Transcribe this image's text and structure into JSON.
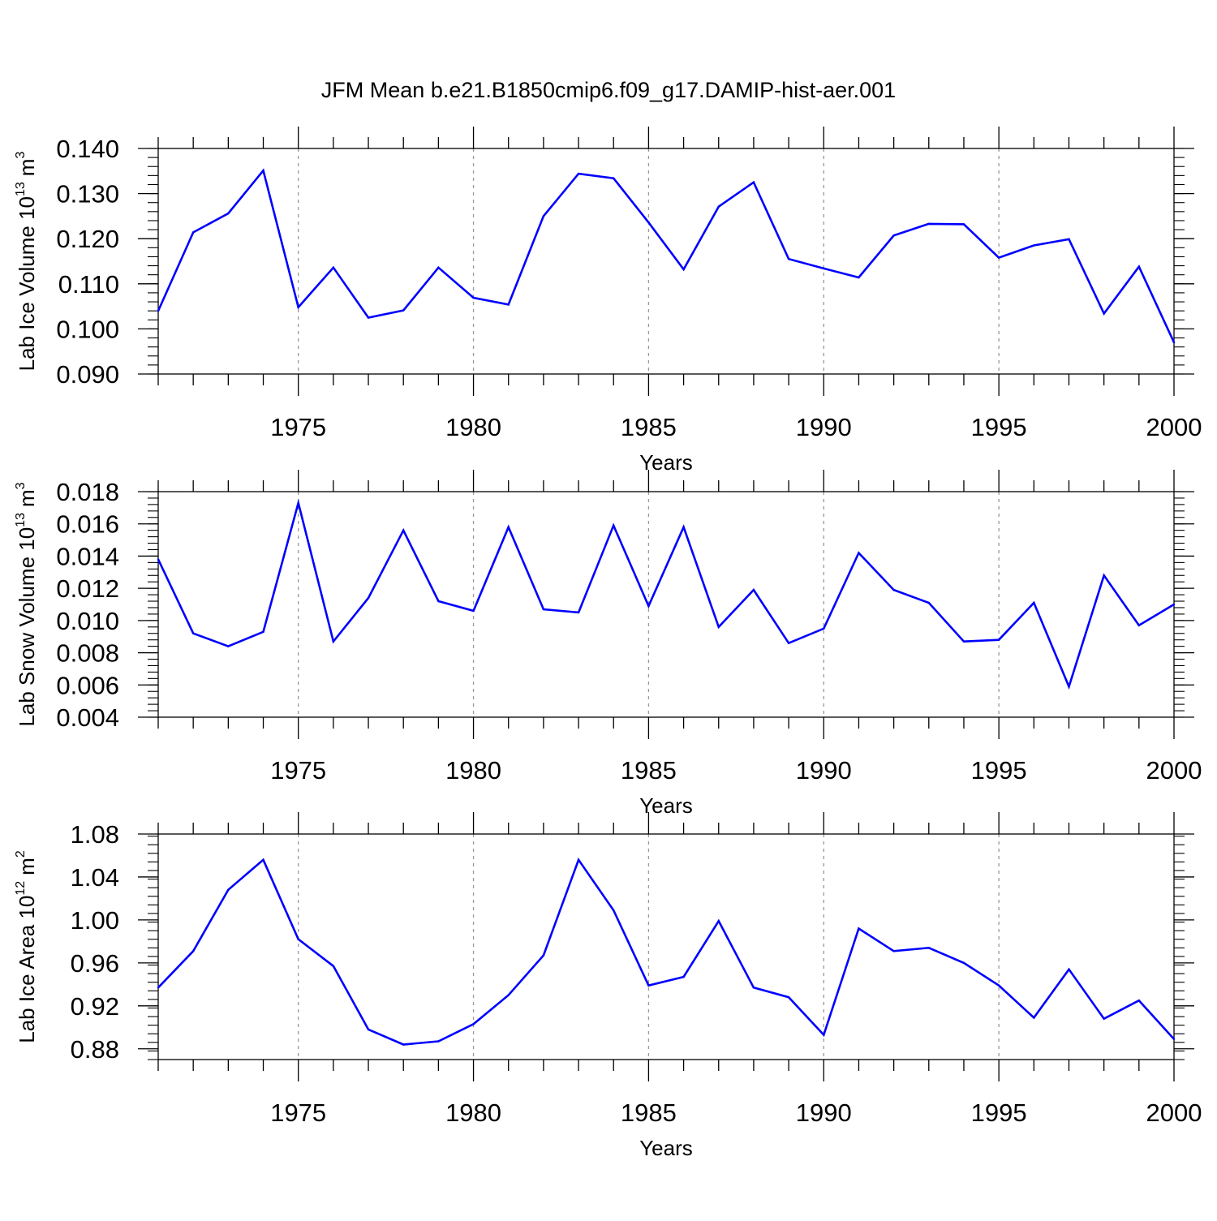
{
  "figure": {
    "title": "JFM Mean b.e21.B1850cmip6.f09_g17.DAMIP-hist-aer.001",
    "line_color": "#0000ff",
    "grid_color": "#999999"
  },
  "chart_data": [
    {
      "type": "line",
      "x": [
        1971,
        1972,
        1973,
        1974,
        1975,
        1976,
        1977,
        1978,
        1979,
        1980,
        1981,
        1982,
        1983,
        1984,
        1985,
        1986,
        1987,
        1988,
        1989,
        1990,
        1991,
        1992,
        1993,
        1994,
        1995,
        1996,
        1997,
        1998,
        1999,
        2000
      ],
      "values": [
        0.104,
        0.1214,
        0.1256,
        0.1351,
        0.1048,
        0.1136,
        0.1025,
        0.1041,
        0.1136,
        0.1069,
        0.1054,
        0.125,
        0.1344,
        0.1334,
        0.1236,
        0.1132,
        0.1271,
        0.1325,
        0.1155,
        0.1134,
        0.1114,
        0.1207,
        0.1233,
        0.1232,
        0.1158,
        0.1185,
        0.1199,
        0.1034,
        0.1138,
        0.097
      ],
      "ylabel": "Lab Ice Volume 10",
      "ylabel_sup": "13",
      "ylabel_unit": "m",
      "ylabel_unit_sup": "3",
      "xlabel": "Years",
      "ylim": [
        0.09,
        0.14
      ],
      "xlim": [
        1971,
        2000
      ],
      "yticks": [
        0.09,
        0.1,
        0.11,
        0.12,
        0.13,
        0.14
      ],
      "ytick_labels": [
        "0.090",
        "0.100",
        "0.110",
        "0.120",
        "0.130",
        "0.140"
      ],
      "xticks": [
        1975,
        1980,
        1985,
        1990,
        1995,
        2000
      ],
      "xtick_labels": [
        "1975",
        "1980",
        "1985",
        "1990",
        "1995",
        "2000"
      ],
      "minor_y": 0.002,
      "grid": "vertical dashed at major x ticks"
    },
    {
      "type": "line",
      "x": [
        1971,
        1972,
        1973,
        1974,
        1975,
        1976,
        1977,
        1978,
        1979,
        1980,
        1981,
        1982,
        1983,
        1984,
        1985,
        1986,
        1987,
        1988,
        1989,
        1990,
        1991,
        1992,
        1993,
        1994,
        1995,
        1996,
        1997,
        1998,
        1999,
        2000
      ],
      "values": [
        0.0138,
        0.0092,
        0.0084,
        0.0093,
        0.0173,
        0.0087,
        0.0114,
        0.0156,
        0.0112,
        0.0106,
        0.0158,
        0.0107,
        0.0105,
        0.0159,
        0.0109,
        0.0158,
        0.0096,
        0.0119,
        0.0086,
        0.0095,
        0.0142,
        0.0119,
        0.0111,
        0.0087,
        0.0088,
        0.0111,
        0.0059,
        0.0128,
        0.0097,
        0.011
      ],
      "ylabel": "Lab Snow Volume 10",
      "ylabel_sup": "13",
      "ylabel_unit": "m",
      "ylabel_unit_sup": "3",
      "xlabel": "Years",
      "ylim": [
        0.004,
        0.018
      ],
      "xlim": [
        1971,
        2000
      ],
      "yticks": [
        0.004,
        0.006,
        0.008,
        0.01,
        0.012,
        0.014,
        0.016,
        0.018
      ],
      "ytick_labels": [
        "0.004",
        "0.006",
        "0.008",
        "0.010",
        "0.012",
        "0.014",
        "0.016",
        "0.018"
      ],
      "xticks": [
        1975,
        1980,
        1985,
        1990,
        1995,
        2000
      ],
      "xtick_labels": [
        "1975",
        "1980",
        "1985",
        "1990",
        "1995",
        "2000"
      ],
      "minor_y": 0.0004,
      "grid": "vertical dashed at major x ticks"
    },
    {
      "type": "line",
      "x": [
        1971,
        1972,
        1973,
        1974,
        1975,
        1976,
        1977,
        1978,
        1979,
        1980,
        1981,
        1982,
        1983,
        1984,
        1985,
        1986,
        1987,
        1988,
        1989,
        1990,
        1991,
        1992,
        1993,
        1994,
        1995,
        1996,
        1997,
        1998,
        1999,
        2000
      ],
      "values": [
        0.937,
        0.971,
        1.028,
        1.056,
        0.982,
        0.957,
        0.898,
        0.884,
        0.887,
        0.903,
        0.93,
        0.967,
        1.056,
        1.009,
        0.939,
        0.947,
        0.999,
        0.937,
        0.928,
        0.893,
        0.992,
        0.971,
        0.974,
        0.96,
        0.939,
        0.909,
        0.954,
        0.908,
        0.925,
        0.889
      ],
      "ylabel": "Lab Ice Area 10",
      "ylabel_sup": "12",
      "ylabel_unit": "m",
      "ylabel_unit_sup": "2",
      "xlabel": "Years",
      "ylim": [
        0.87,
        1.08
      ],
      "xlim": [
        1971,
        2000
      ],
      "yticks": [
        0.88,
        0.92,
        0.96,
        1.0,
        1.04,
        1.08
      ],
      "ytick_labels": [
        "0.88",
        "0.92",
        "0.96",
        "1.00",
        "1.04",
        "1.08"
      ],
      "xticks": [
        1975,
        1980,
        1985,
        1990,
        1995,
        2000
      ],
      "xtick_labels": [
        "1975",
        "1980",
        "1985",
        "1990",
        "1995",
        "2000"
      ],
      "minor_y": 0.008,
      "grid": "vertical dashed at major x ticks"
    }
  ]
}
